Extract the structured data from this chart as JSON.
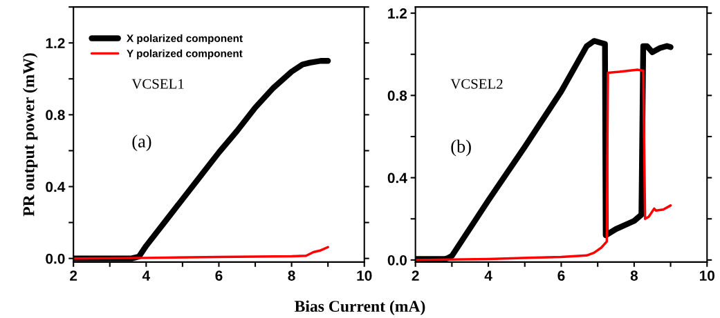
{
  "chart_data": [
    {
      "type": "line",
      "ylabel": "PR output power (mW)",
      "xlabel": "Bias Current (mA)",
      "legend": "top left",
      "annotations": [
        "VCSEL1",
        "(a)"
      ],
      "xlim": [
        2,
        10
      ],
      "xticks": [
        2,
        {
          "value": 3,
          "label": null
        },
        4,
        {
          "value": 5,
          "label": null
        },
        6,
        {
          "value": 7,
          "label": null
        },
        8,
        {
          "value": 9,
          "label": null
        },
        10
      ],
      "ylim": [
        -0.02,
        1.4
      ],
      "yticks": [
        {
          "value": 0,
          "label": "0.0"
        },
        {
          "value": 0.2,
          "label": null
        },
        0.4,
        {
          "value": 0.6,
          "label": null
        },
        0.8,
        {
          "value": 1.0,
          "label": null
        },
        1.2,
        {
          "value": 1.4,
          "label": null
        }
      ],
      "series": [
        {
          "name": "X polarized component",
          "color": "#000000",
          "x": [
            2,
            3,
            3.6,
            3.8,
            4,
            4.5,
            5,
            5.5,
            6,
            6.5,
            7,
            7.5,
            8,
            8.3,
            8.5,
            8.8,
            9
          ],
          "values": [
            0,
            0,
            0,
            0.01,
            0.07,
            0.2,
            0.33,
            0.46,
            0.59,
            0.71,
            0.84,
            0.95,
            1.04,
            1.08,
            1.09,
            1.1,
            1.1
          ]
        },
        {
          "name": "Y polarized component",
          "color": "#ff0000",
          "x": [
            2,
            4,
            6,
            8,
            8.4,
            8.6,
            8.8,
            9
          ],
          "values": [
            0,
            0.003,
            0.008,
            0.012,
            0.015,
            0.035,
            0.045,
            0.063
          ]
        }
      ]
    },
    {
      "type": "line",
      "annotations": [
        "VCSEL2",
        "(b)"
      ],
      "xlim": [
        2,
        10
      ],
      "xticks": [
        2,
        {
          "value": 3,
          "label": null
        },
        4,
        {
          "value": 5,
          "label": null
        },
        6,
        {
          "value": 7,
          "label": null
        },
        8,
        {
          "value": 9,
          "label": null
        },
        10
      ],
      "ylim": [
        -0.01,
        1.23
      ],
      "yticks": [
        {
          "value": 0,
          "label": "0.0"
        },
        {
          "value": 0.2,
          "label": null
        },
        0.4,
        {
          "value": 0.6,
          "label": null
        },
        0.8,
        {
          "value": 1.0,
          "label": null
        },
        1.2
      ],
      "series": [
        {
          "color": "#000000",
          "x": [
            2,
            2.8,
            2.9,
            3,
            4,
            5,
            6,
            6.7,
            6.9,
            7,
            7.2,
            7.22,
            7.5,
            8,
            8.2,
            8.25,
            8.35,
            8.5,
            8.7,
            8.9,
            9
          ],
          "values": [
            0.005,
            0.005,
            0.01,
            0.02,
            0.29,
            0.55,
            0.82,
            1.04,
            1.065,
            1.06,
            1.05,
            0.12,
            0.15,
            0.19,
            0.22,
            1.04,
            1.04,
            1.01,
            1.03,
            1.04,
            1.035
          ]
        },
        {
          "color": "#ff0000",
          "x": [
            2,
            4,
            6,
            6.7,
            6.9,
            7.1,
            7.25,
            7.28,
            7.6,
            8.1,
            8.25,
            8.3,
            8.4,
            8.55,
            8.6,
            8.8,
            9
          ],
          "values": [
            0,
            0.005,
            0.015,
            0.022,
            0.035,
            0.06,
            0.09,
            0.91,
            0.915,
            0.925,
            0.92,
            0.2,
            0.21,
            0.25,
            0.24,
            0.245,
            0.265
          ]
        }
      ]
    }
  ]
}
